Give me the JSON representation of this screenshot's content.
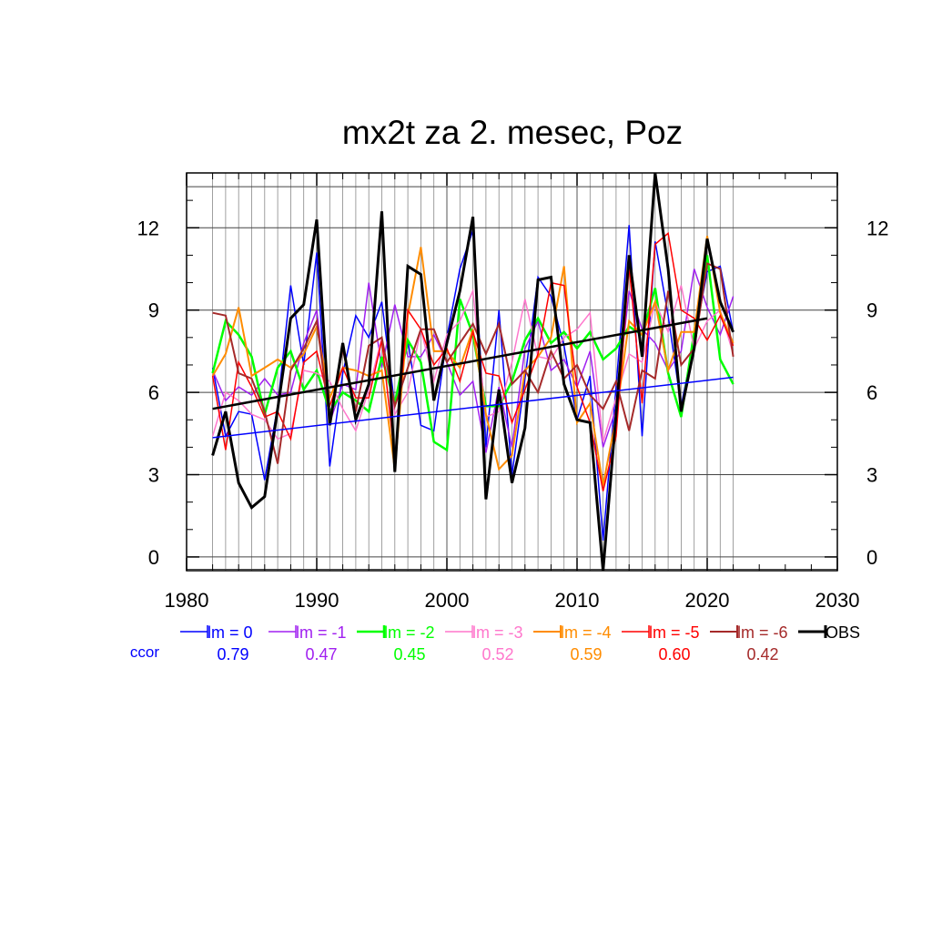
{
  "chart_data": {
    "type": "line",
    "title": "mx2t za 2. mesec, Poz",
    "xlabel": "",
    "ylabel": "",
    "xlim": [
      1980,
      2030
    ],
    "ylim": [
      -0.5,
      14
    ],
    "x_ticks": [
      "1980",
      "1990",
      "2000",
      "2010",
      "2020",
      "2030"
    ],
    "y_ticks": [
      "0",
      "3",
      "6",
      "9",
      "12"
    ],
    "grid": true,
    "legend_position": "bottom",
    "ccor_label": "ccor",
    "years": [
      1982,
      1983,
      1984,
      1985,
      1986,
      1987,
      1988,
      1989,
      1990,
      1991,
      1992,
      1993,
      1994,
      1995,
      1996,
      1997,
      1998,
      1999,
      2000,
      2001,
      2002,
      2003,
      2004,
      2005,
      2006,
      2007,
      2008,
      2009,
      2010,
      2011,
      2012,
      2013,
      2014,
      2015,
      2016,
      2017,
      2018,
      2019,
      2020,
      2021,
      2022
    ],
    "series": [
      {
        "name": "lm = 0",
        "color": "#0000ff",
        "width": 1.5,
        "ccor": "0.79",
        "values": [
          6.9,
          4.4,
          5.3,
          5.2,
          2.8,
          5.5,
          9.9,
          7.0,
          11.1,
          3.3,
          6.7,
          8.8,
          8.0,
          9.3,
          5.5,
          7.9,
          4.8,
          4.6,
          8.0,
          10.5,
          11.9,
          4.0,
          9.0,
          3.0,
          6.5,
          10.2,
          9.5,
          7.7,
          5.0,
          6.6,
          0.6,
          6.2,
          12.1,
          4.4,
          11.5,
          8.8,
          5.5,
          7.9,
          10.4,
          10.6,
          8.2
        ],
        "trend": [
          [
            1982,
            4.35
          ],
          [
            2022,
            6.55
          ]
        ]
      },
      {
        "name": "lm = -1",
        "color": "#a020f0",
        "width": 1.5,
        "ccor": "0.47",
        "values": [
          6.8,
          5.7,
          6.2,
          5.9,
          6.5,
          5.9,
          6.0,
          7.8,
          9.0,
          4.9,
          6.3,
          6.1,
          10.0,
          6.9,
          9.2,
          7.3,
          7.3,
          8.1,
          7.1,
          5.9,
          6.4,
          3.8,
          6.2,
          4.0,
          7.6,
          8.6,
          6.8,
          7.2,
          6.2,
          7.5,
          4.0,
          5.4,
          9.7,
          8.3,
          7.8,
          6.8,
          7.5,
          10.5,
          9.1,
          8.1,
          9.5
        ]
      },
      {
        "name": "lm = -2",
        "color": "#00ff00",
        "width": 2.5,
        "ccor": "0.45",
        "values": [
          6.7,
          8.6,
          8.1,
          7.3,
          5.2,
          6.9,
          7.5,
          6.1,
          6.8,
          5.3,
          6.0,
          5.7,
          5.3,
          7.3,
          5.6,
          7.9,
          7.1,
          4.2,
          3.9,
          9.4,
          8.1,
          5.5,
          5.5,
          6.4,
          7.9,
          8.7,
          7.8,
          8.2,
          7.6,
          8.2,
          7.2,
          7.6,
          8.4,
          8.1,
          9.8,
          6.7,
          5.1,
          8.2,
          11.0,
          7.2,
          6.3
        ]
      },
      {
        "name": "lm = -3",
        "color": "#ff77cc",
        "width": 1.5,
        "ccor": "0.52",
        "values": [
          4.4,
          6.0,
          5.7,
          5.2,
          5.0,
          4.3,
          4.5,
          6.8,
          6.7,
          6.4,
          5.4,
          4.6,
          6.1,
          8.0,
          5.2,
          6.0,
          8.3,
          6.4,
          8.1,
          8.6,
          9.7,
          5.1,
          5.3,
          7.1,
          9.4,
          7.3,
          7.2,
          8.0,
          8.3,
          8.9,
          4.2,
          5.8,
          7.4,
          7.1,
          9.3,
          8.2,
          9.9,
          7.6,
          8.6,
          9.0,
          7.4
        ]
      },
      {
        "name": "lm = -4",
        "color": "#ff8c00",
        "width": 2.0,
        "ccor": "0.59",
        "values": [
          6.6,
          7.4,
          9.1,
          6.6,
          6.9,
          7.2,
          6.9,
          7.4,
          8.4,
          5.8,
          6.9,
          6.8,
          6.6,
          6.8,
          3.2,
          8.8,
          11.3,
          7.5,
          7.5,
          6.9,
          8.3,
          5.2,
          3.2,
          3.7,
          6.8,
          7.3,
          8.0,
          10.6,
          4.9,
          5.6,
          2.6,
          5.1,
          8.6,
          8.1,
          9.3,
          6.8,
          8.2,
          8.2,
          11.7,
          8.9,
          7.8
        ]
      },
      {
        "name": "lm = -5",
        "color": "#ff0000",
        "width": 1.5,
        "ccor": "0.60",
        "values": [
          6.6,
          3.9,
          7.1,
          6.2,
          5.1,
          5.3,
          4.3,
          7.1,
          7.5,
          5.5,
          6.9,
          5.8,
          5.8,
          7.9,
          3.6,
          9.0,
          8.3,
          7.0,
          7.6,
          6.4,
          8.2,
          6.7,
          6.6,
          4.9,
          6.1,
          7.4,
          10.0,
          9.9,
          6.2,
          4.9,
          2.4,
          4.4,
          10.6,
          5.6,
          11.4,
          11.8,
          9.0,
          8.7,
          7.9,
          8.8,
          7.7
        ]
      },
      {
        "name": "lm = -6",
        "color": "#a52a2a",
        "width": 2.0,
        "ccor": "0.42",
        "values": [
          8.9,
          8.8,
          6.7,
          6.5,
          5.3,
          3.4,
          6.8,
          7.6,
          8.6,
          5.0,
          7.6,
          5.3,
          7.7,
          8.0,
          5.5,
          6.9,
          8.3,
          8.3,
          7.1,
          7.8,
          8.5,
          7.4,
          8.5,
          6.3,
          6.8,
          6.0,
          7.5,
          6.5,
          7.0,
          5.9,
          5.4,
          6.4,
          4.6,
          6.8,
          6.5,
          9.7,
          7.0,
          7.6,
          10.7,
          10.5,
          7.3
        ]
      },
      {
        "name": "OBS",
        "color": "#000000",
        "width": 3.0,
        "ccor": "",
        "values": [
          3.7,
          5.3,
          2.7,
          1.8,
          2.2,
          5.4,
          8.7,
          9.2,
          12.3,
          4.8,
          7.8,
          5.0,
          6.3,
          12.6,
          3.1,
          10.6,
          10.3,
          5.7,
          7.8,
          9.7,
          12.4,
          2.1,
          6.1,
          2.7,
          4.7,
          10.1,
          10.2,
          6.3,
          5.0,
          4.9,
          -0.5,
          5.2,
          11.0,
          7.3,
          14.0,
          10.5,
          5.3,
          7.6,
          11.6,
          9.3,
          8.2
        ],
        "trend": [
          [
            1982,
            5.4
          ],
          [
            2020,
            8.7
          ]
        ]
      }
    ]
  }
}
